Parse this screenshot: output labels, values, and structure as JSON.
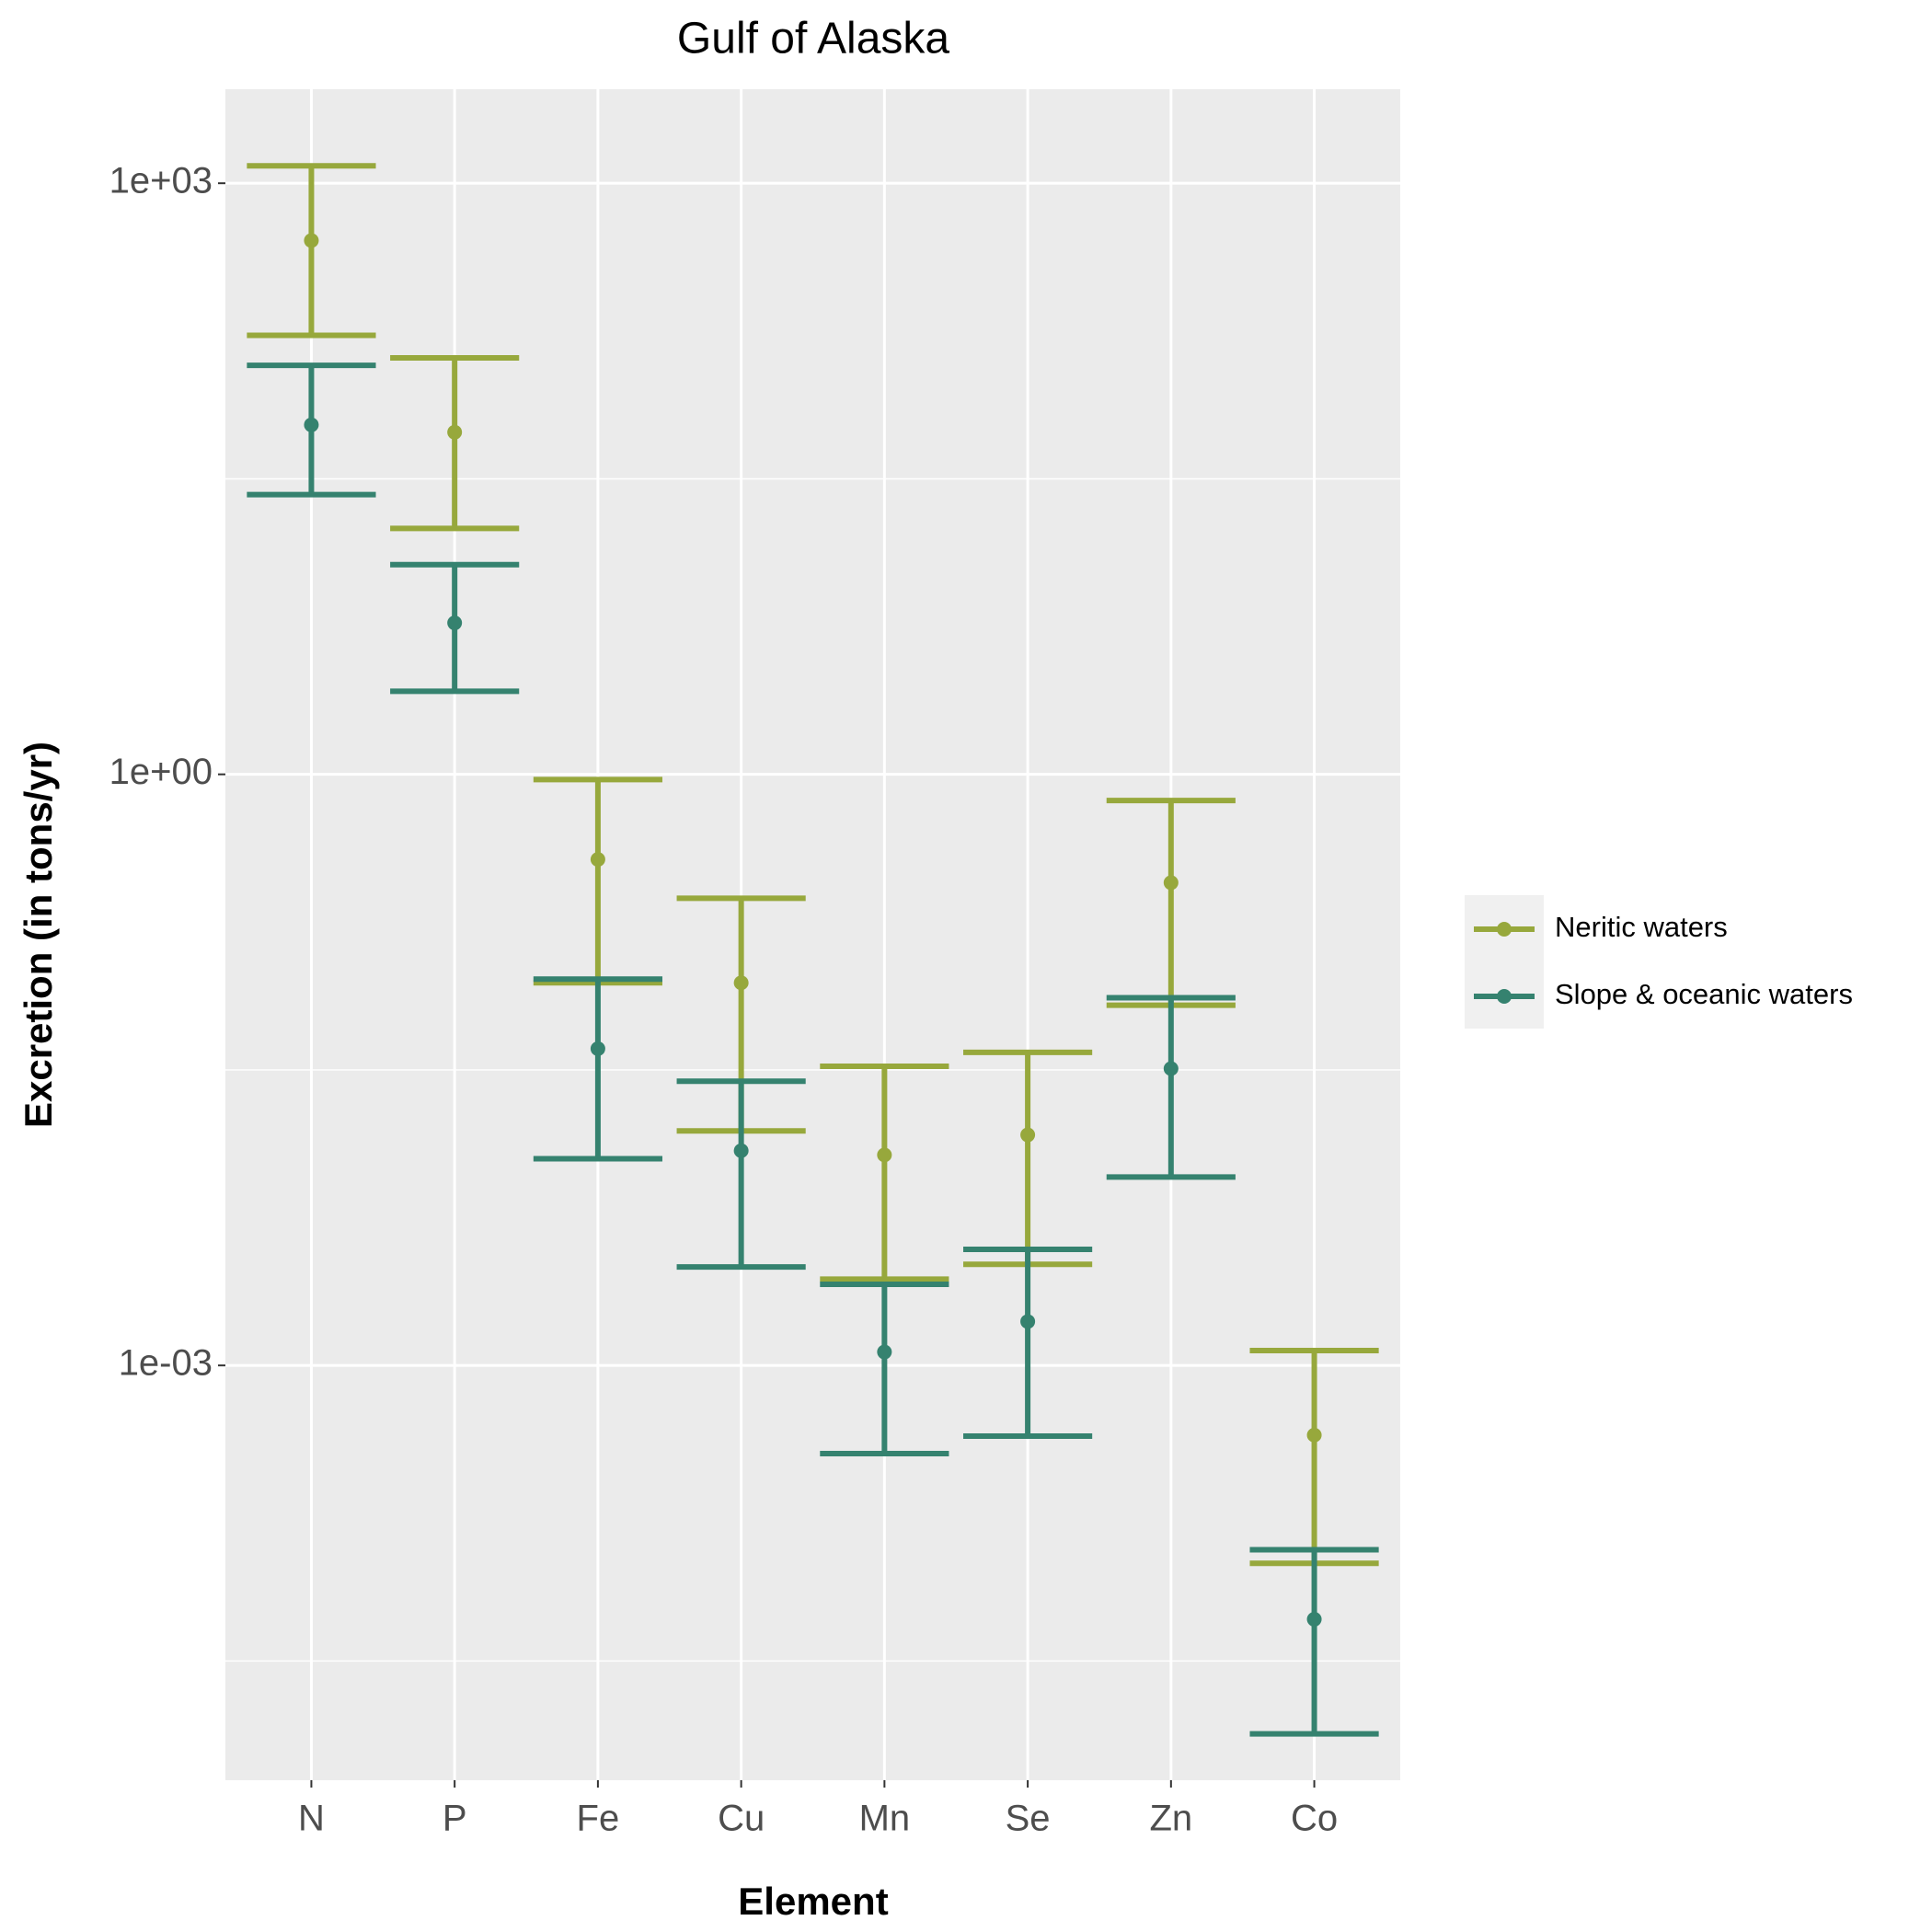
{
  "chart_data": {
    "type": "errorbar",
    "title": "Gulf of Alaska",
    "x_label": "Element",
    "y_label": "Excretion (in tons/yr)",
    "categories": [
      "N",
      "P",
      "Fe",
      "Cu",
      "Mn",
      "Se",
      "Zn",
      "Co"
    ],
    "log_scale": true,
    "grid": true,
    "legend_position": "right",
    "ylim": [
      7.85e-06,
      3000
    ],
    "yticks": [
      {
        "value": 1000,
        "label": "1e+03"
      },
      {
        "value": 1,
        "label": "1e+00"
      },
      {
        "value": 0.001,
        "label": "1e-03"
      }
    ],
    "minor_yticks": [
      31.6,
      0.0316,
      3.16e-05
    ],
    "series": [
      {
        "name": "Neritic waters",
        "color": "#97a83c",
        "values": [
          512,
          54.5,
          0.37,
          0.0875,
          0.0117,
          0.0148,
          0.282,
          0.000443
        ],
        "lower": [
          169,
          17.7,
          0.0875,
          0.0155,
          0.00274,
          0.00326,
          0.0673,
          9.9e-05
        ],
        "upper": [
          1225,
          130,
          0.94,
          0.235,
          0.033,
          0.0388,
          0.736,
          0.00119
        ]
      },
      {
        "name": "Slope & oceanic waters",
        "color": "#35826f",
        "values": [
          59.4,
          5.87,
          0.0405,
          0.0123,
          0.00117,
          0.00167,
          0.0321,
          5.15e-05
        ],
        "lower": [
          26.3,
          2.64,
          0.0112,
          0.00316,
          0.000357,
          0.000438,
          0.00904,
          1.35e-05
        ],
        "upper": [
          119,
          11.6,
          0.0914,
          0.0277,
          0.00258,
          0.00388,
          0.0735,
          0.000116
        ]
      }
    ]
  }
}
